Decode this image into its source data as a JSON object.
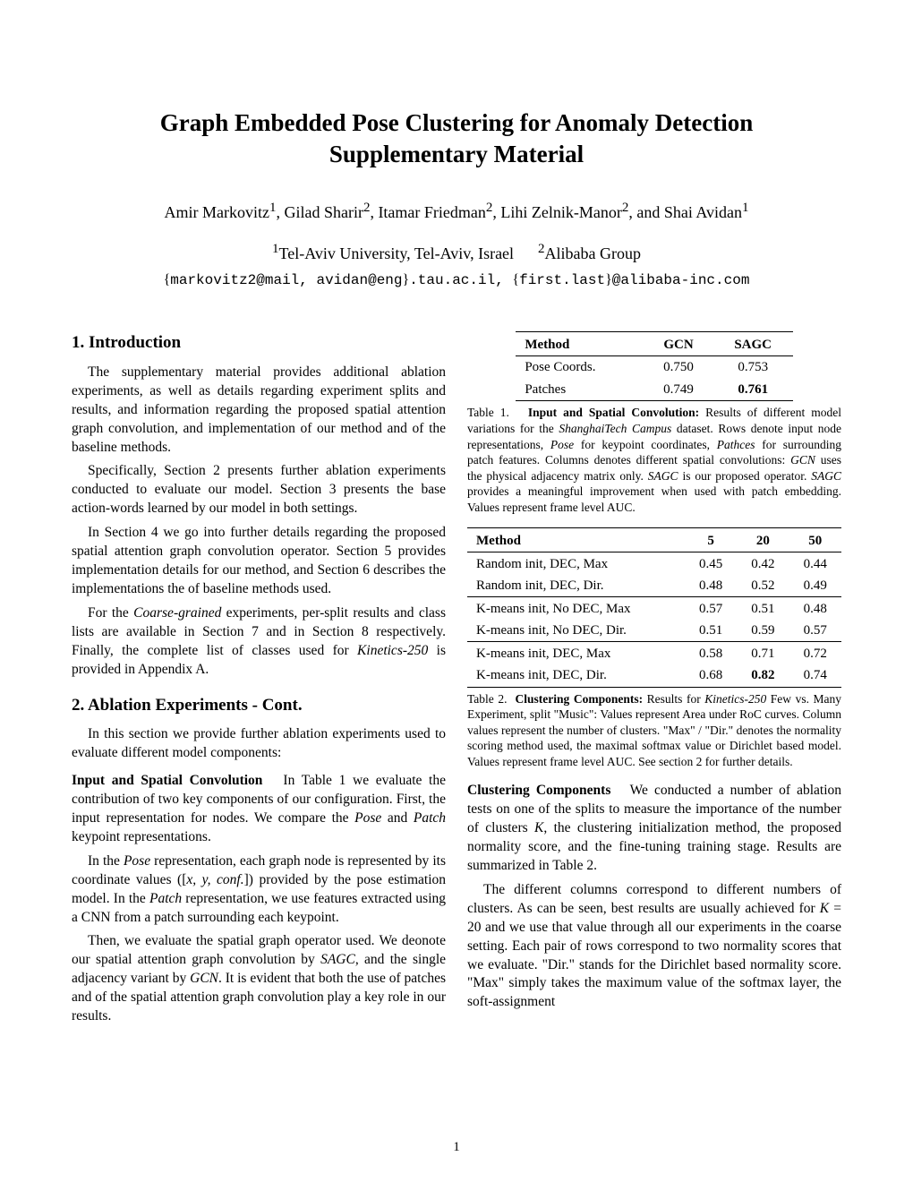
{
  "title_line1": "Graph Embedded Pose Clustering for Anomaly Detection",
  "title_line2": "Supplementary Material",
  "authors_html": "Amir Markovitz<sup>1</sup>, Gilad Sharir<sup>2</sup>, Itamar Friedman<sup>2</sup>, Lihi Zelnik-Manor<sup>2</sup>, and Shai Avidan<sup>1</sup>",
  "affil_html": "<sup>1</sup>Tel-Aviv University, Tel-Aviv, Israel&nbsp;&nbsp;&nbsp;&nbsp;&nbsp;&nbsp;<sup>2</sup>Alibaba Group",
  "emails_html": "<span>{</span>markovitz2@mail, avidan@eng<span>}</span>.tau.ac.il, <span>{</span>first.last<span>}</span>@alibaba-inc.com",
  "sec1_heading": "1. Introduction",
  "sec1_p1": "The supplementary material provides additional ablation experiments, as well as details regarding experiment splits and results, and information regarding the proposed spatial attention graph convolution, and implementation of our method and of the baseline methods.",
  "sec1_p2": "Specifically, Section 2 presents further ablation experiments conducted to evaluate our model. Section 3 presents the base action-words learned by our model in both settings.",
  "sec1_p3": "In Section 4 we go into further details regarding the proposed spatial attention graph convolution operator. Section 5 provides implementation details for our method, and Section 6 describes the implementations the of baseline methods used.",
  "sec1_p4_html": "For the <span class=\"italic\">Coarse-grained</span> experiments, per-split results and class lists are available in Section 7 and in Section 8 respectively. Finally, the complete list of classes used for <span class=\"italic\">Kinetics-250</span> is provided in Appendix A.",
  "sec2_heading": "2. Ablation Experiments - Cont.",
  "sec2_p1": "In this section we provide further ablation experiments used to evaluate different model components:",
  "sec2_p2_html": "<span class=\"runin\">Input and Spatial Convolution</span>&nbsp;&nbsp;&nbsp;In Table 1 we evaluate the contribution of two key components of our configuration. First, the input representation for nodes. We compare the <span class=\"italic\">Pose</span> and <span class=\"italic\">Patch</span> keypoint representations.",
  "sec2_p3_html": "In the <span class=\"italic\">Pose</span> representation, each graph node is represented by its coordinate values ([<span class=\"italic\">x, y, conf.</span>]) provided by the pose estimation model. In the <span class=\"italic\">Patch</span> representation, we use features extracted using a CNN from a patch surrounding each keypoint.",
  "sec2_p4_html": "Then, we evaluate the spatial graph operator used. We deonote our spatial attention graph convolution by <span class=\"italic\">SAGC</span>, and the single adjacency variant by <span class=\"italic\">GCN</span>. It is evident that both the use of patches and of the spatial attention graph convolution play a key role in our results.",
  "table1": {
    "head": [
      "Method",
      "GCN",
      "SAGC"
    ],
    "rows": [
      [
        "Pose Coords.",
        "0.750",
        "0.753",
        false
      ],
      [
        "Patches",
        "0.749",
        "0.761",
        true
      ]
    ]
  },
  "table1_caption_html": "Table 1.&nbsp;&nbsp;&nbsp;<span class=\"bold\">Input and Spatial Convolution:</span> Results of different model variations for the <span class=\"italic\">ShanghaiTech Campus</span> dataset. Rows denote input node representations, <span class=\"italic\">Pose</span> for keypoint coordinates, <span class=\"italic\">Pathces</span> for surrounding patch features. Columns denotes different spatial convolutions: <span class=\"italic\">GCN</span> uses the physical adjacency matrix only. <span class=\"italic\">SAGC</span> is our proposed operator. <span class=\"italic\">SAGC</span> provides a meaningful improvement when used with patch embedding. Values represent frame level AUC.",
  "table2": {
    "head": [
      "Method",
      "5",
      "20",
      "50"
    ],
    "groups": [
      [
        [
          "Random init, DEC, Max",
          "0.45",
          "0.42",
          "0.44",
          [
            false,
            false,
            false
          ]
        ],
        [
          "Random init, DEC, Dir.",
          "0.48",
          "0.52",
          "0.49",
          [
            false,
            false,
            false
          ]
        ]
      ],
      [
        [
          "K-means init, No DEC, Max",
          "0.57",
          "0.51",
          "0.48",
          [
            false,
            false,
            false
          ]
        ],
        [
          "K-means init, No DEC, Dir.",
          "0.51",
          "0.59",
          "0.57",
          [
            false,
            false,
            false
          ]
        ]
      ],
      [
        [
          "K-means init, DEC, Max",
          "0.58",
          "0.71",
          "0.72",
          [
            false,
            false,
            false
          ]
        ],
        [
          "K-means init, DEC, Dir.",
          "0.68",
          "0.82",
          "0.74",
          [
            false,
            true,
            false
          ]
        ]
      ]
    ]
  },
  "table2_caption_html": "Table 2.&nbsp;&nbsp;<span class=\"bold\">Clustering Components:</span> Results for <span class=\"italic\">Kinetics-250</span> Few vs. Many Experiment, split \"Music\": Values represent Area under RoC curves. Column values represent the number of clusters. \"Max\" / \"Dir.\" denotes the normality scoring method used, the maximal softmax value or Dirichlet based model. Values represent frame level AUC. See section 2 for further details.",
  "right_p1_html": "<span class=\"runin\">Clustering Components</span>&nbsp;&nbsp;&nbsp;We conducted a number of ablation tests on one of the splits to measure the importance of the number of clusters <span class=\"italic\">K</span>, the clustering initialization method, the proposed normality score, and the fine-tuning training stage. Results are summarized in Table 2.",
  "right_p2_html": "The different columns correspond to different numbers of clusters. As can be seen, best results are usually achieved for <span class=\"italic\">K</span> = 20 and we use that value through all our experiments in the coarse setting. Each pair of rows correspond to two normality scores that we evaluate. \"Dir.\" stands for the Dirichlet based normality score. \"Max\" simply takes the maximum value of the softmax layer, the soft-assignment",
  "page_number": "1"
}
